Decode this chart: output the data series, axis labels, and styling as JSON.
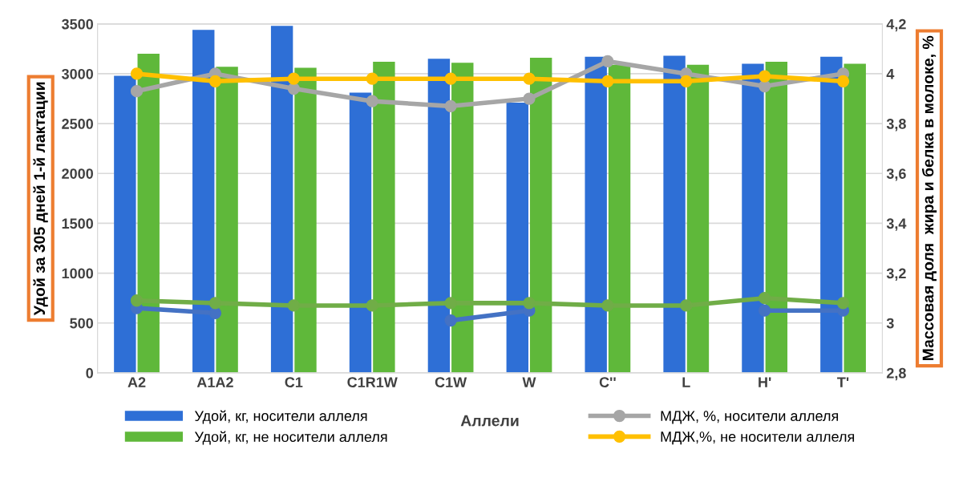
{
  "chart_data": {
    "type": "bar",
    "xlabel": "Аллели",
    "ylabel": "Удой за 305 дней 1-й лактации",
    "y2label": "Массовая доля  жира и белка в молоке, %",
    "categories": [
      "A2",
      "A1A2",
      "C1",
      "C1R1W",
      "C1W",
      "W",
      "C''",
      "L",
      "H'",
      "T'"
    ],
    "series": [
      {
        "name": "Удой, кг, носители аллеля",
        "color": "#2e6fd6",
        "values": [
          2980,
          3440,
          3480,
          2810,
          3150,
          2710,
          3170,
          3180,
          3100,
          3170
        ]
      },
      {
        "name": "Удой, кг, не носители аллеля",
        "color": "#5fb83a",
        "values": [
          3200,
          3070,
          3060,
          3120,
          3110,
          3160,
          3090,
          3090,
          3120,
          3100
        ]
      },
      {
        "name": "МДЖ, %, носители аллеля",
        "type": "line",
        "axis": "y2",
        "color": "#a6a6a6",
        "values": [
          3.93,
          4.0,
          3.94,
          3.89,
          3.87,
          3.9,
          4.05,
          4.0,
          3.95,
          4.0
        ]
      },
      {
        "name": "МДЖ,%, не носители аллеля",
        "type": "line",
        "axis": "y2",
        "color": "#ffc000",
        "values": [
          4.0,
          3.97,
          3.98,
          3.98,
          3.98,
          3.98,
          3.97,
          3.97,
          3.99,
          3.97
        ]
      },
      {
        "type": "line",
        "axis": "y2",
        "color": "#4472c4",
        "values": [
          3.06,
          3.04,
          null,
          null,
          3.01,
          3.05,
          null,
          null,
          3.05,
          3.05
        ]
      },
      {
        "type": "line",
        "axis": "y2",
        "color": "#70ad47",
        "values": [
          3.09,
          3.08,
          3.07,
          3.07,
          3.08,
          3.08,
          3.07,
          3.07,
          3.1,
          3.08
        ]
      }
    ],
    "ylim": [
      0,
      3500
    ],
    "yticks": [
      0,
      500,
      1000,
      1500,
      2000,
      2500,
      3000,
      3500
    ],
    "y2lim": [
      2.8,
      4.2
    ],
    "y2ticks": [
      {
        "value": 2.8,
        "label": "2,8"
      },
      {
        "value": 3.0,
        "label": "3"
      },
      {
        "value": 3.2,
        "label": "3,2"
      },
      {
        "value": 3.4,
        "label": "3,4"
      },
      {
        "value": 3.6,
        "label": "3,6"
      },
      {
        "value": 3.8,
        "label": "3,8"
      },
      {
        "value": 4.0,
        "label": "4"
      },
      {
        "value": 4.2,
        "label": "4,2"
      }
    ],
    "grid": "y",
    "legend": "bottom",
    "marker": "circle",
    "line_style": "solid"
  }
}
